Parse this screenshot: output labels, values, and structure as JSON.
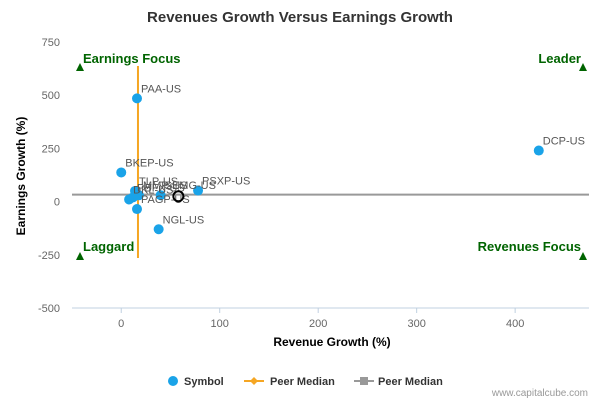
{
  "chart_data": {
    "type": "scatter",
    "title": "Revenues Growth Versus Earnings Growth",
    "xlabel": "Revenue Growth (%)",
    "ylabel": "Earnings Growth (%)",
    "xlim": [
      -50,
      475
    ],
    "ylim": [
      -500,
      750
    ],
    "xticks": [
      0,
      100,
      200,
      300,
      400
    ],
    "yticks": [
      -500,
      -250,
      0,
      250,
      500,
      750
    ],
    "grid": false,
    "legend_position": "bottom",
    "series": [
      {
        "name": "Symbol",
        "color": "#1aa3e8",
        "points": [
          {
            "label": "PAA-US",
            "x": 16,
            "y": 485
          },
          {
            "label": "DCP-US",
            "x": 424,
            "y": 240
          },
          {
            "label": "BKEP-US",
            "x": 0,
            "y": 137
          },
          {
            "label": "PSXP-US",
            "x": 78,
            "y": 52
          },
          {
            "label": "TLP-US",
            "x": 14,
            "y": 50
          },
          {
            "label": "MMP-US",
            "x": 18,
            "y": 30
          },
          {
            "label": "SEMG-US",
            "x": 40,
            "y": 30
          },
          {
            "label": "PBFX-US",
            "x": 12,
            "y": 20
          },
          {
            "label": "DKL-US",
            "x": 8,
            "y": 10
          },
          {
            "label": "PAGP-US",
            "x": 16,
            "y": -35
          },
          {
            "label": "NGL-US",
            "x": 38,
            "y": -130
          }
        ]
      }
    ],
    "highlight": {
      "x": 58,
      "y": 25
    },
    "peer_median_x": {
      "name": "Peer Median",
      "value": 17,
      "color": "#f5a623"
    },
    "peer_median_y": {
      "name": "Peer Median",
      "value": 33,
      "color": "#999999"
    },
    "quadrants": {
      "top_left": "Earnings Focus",
      "top_right": "Leader",
      "bottom_left": "Laggard",
      "bottom_right": "Revenues Focus"
    },
    "quadrant_color": "#006400"
  },
  "credit": "www.capitalcube.com"
}
